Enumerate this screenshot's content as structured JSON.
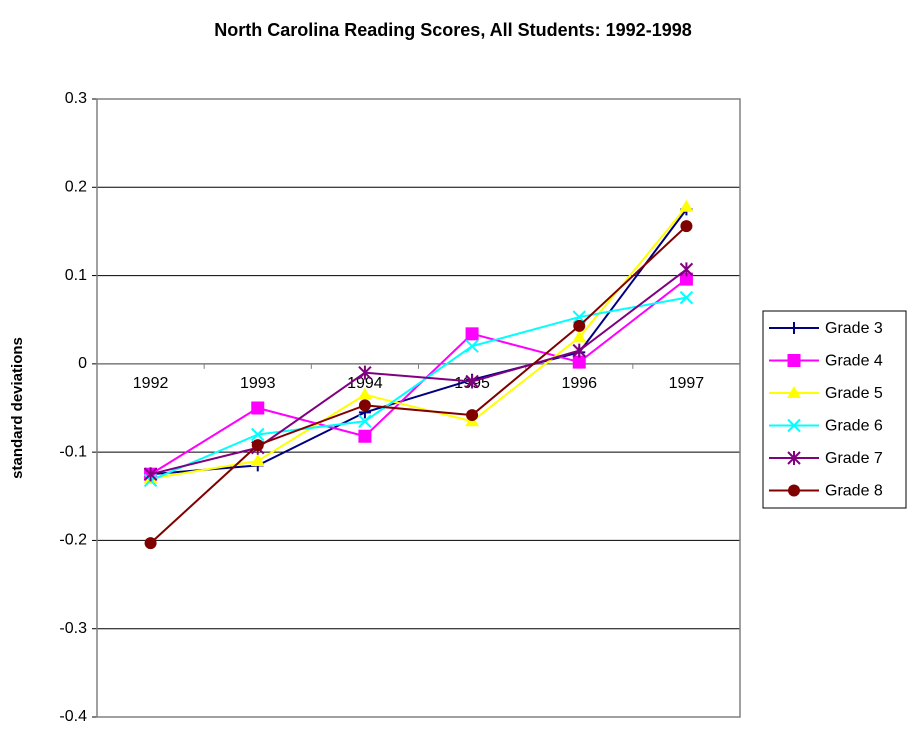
{
  "chart_data": {
    "type": "line",
    "title": "North Carolina Reading Scores, All Students:  1992-1998",
    "y_label": "standard deviations",
    "categories": [
      "1992",
      "1993",
      "1994",
      "1995",
      "1996",
      "1997"
    ],
    "series": [
      {
        "name": "Grade 3",
        "color": "#000080",
        "marker": "plus",
        "values": [
          -0.125,
          -0.115,
          -0.055,
          -0.018,
          0.013,
          0.175
        ]
      },
      {
        "name": "Grade 4",
        "color": "#ff00ff",
        "marker": "square",
        "values": [
          -0.125,
          -0.05,
          -0.082,
          0.034,
          0.002,
          0.096
        ]
      },
      {
        "name": "Grade 5",
        "color": "#ffff00",
        "marker": "triangle",
        "values": [
          -0.13,
          -0.11,
          -0.035,
          -0.065,
          0.03,
          0.178
        ]
      },
      {
        "name": "Grade 6",
        "color": "#00ffff",
        "marker": "x",
        "values": [
          -0.132,
          -0.08,
          -0.065,
          0.02,
          0.053,
          0.075
        ]
      },
      {
        "name": "Grade 7",
        "color": "#800080",
        "marker": "star",
        "values": [
          -0.125,
          -0.095,
          -0.01,
          -0.02,
          0.015,
          0.107
        ]
      },
      {
        "name": "Grade 8",
        "color": "#800000",
        "marker": "circle",
        "values": [
          -0.203,
          -0.092,
          -0.047,
          -0.058,
          0.043,
          0.156
        ]
      }
    ],
    "ylim": [
      -0.4,
      0.3
    ],
    "yticks": [
      0.3,
      0.2,
      0.1,
      0,
      -0.1,
      -0.2,
      -0.3,
      -0.4
    ],
    "grid": true,
    "legend": "right"
  }
}
